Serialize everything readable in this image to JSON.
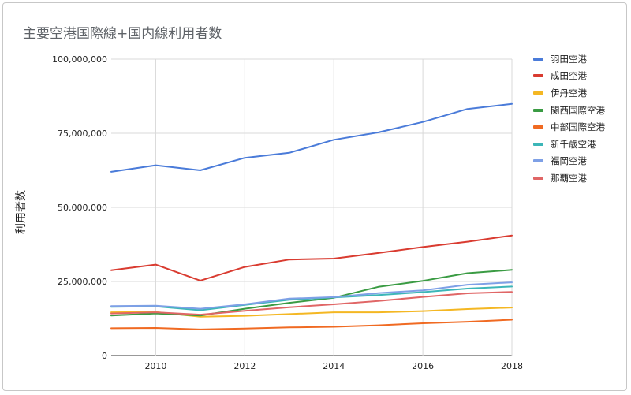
{
  "chart_data": {
    "type": "line",
    "title": "主要空港国際線+国内線利用者数",
    "xlabel": "",
    "ylabel": "利用者数",
    "x": [
      2009,
      2010,
      2011,
      2012,
      2013,
      2014,
      2015,
      2016,
      2017,
      2018
    ],
    "xlim": [
      2009,
      2018
    ],
    "xticks": [
      "2010",
      "2012",
      "2014",
      "2016",
      "2018"
    ],
    "ylim": [
      0,
      100000000
    ],
    "yticks": [
      "0",
      "25,000,000",
      "50,000,000",
      "75,000,000",
      "100,000,000"
    ],
    "grid": true,
    "legend_position": "right",
    "series": [
      {
        "name": "羽田空港",
        "color": "#4a7bd9",
        "values": [
          62000000,
          64200000,
          62500000,
          66700000,
          68400000,
          72800000,
          75300000,
          78800000,
          83200000,
          84900000
        ]
      },
      {
        "name": "成田空港",
        "color": "#d93b30",
        "values": [
          28800000,
          30700000,
          25300000,
          29900000,
          32400000,
          32700000,
          34600000,
          36600000,
          38400000,
          40500000
        ]
      },
      {
        "name": "伊丹空港",
        "color": "#f4b723",
        "values": [
          14600000,
          14700000,
          13100000,
          13400000,
          14000000,
          14600000,
          14600000,
          15000000,
          15700000,
          16200000
        ]
      },
      {
        "name": "関西国際空港",
        "color": "#3a9b43",
        "values": [
          13500000,
          14200000,
          13500000,
          15800000,
          17800000,
          19500000,
          23200000,
          25200000,
          27800000,
          28900000
        ]
      },
      {
        "name": "中部国際空港",
        "color": "#f06a22",
        "values": [
          9200000,
          9300000,
          8800000,
          9100000,
          9500000,
          9700000,
          10200000,
          10900000,
          11400000,
          12100000
        ]
      },
      {
        "name": "新千歳空港",
        "color": "#3cb6b8",
        "values": [
          16400000,
          16600000,
          15300000,
          17100000,
          18800000,
          19600000,
          20400000,
          21400000,
          22600000,
          23300000
        ]
      },
      {
        "name": "福岡空港",
        "color": "#7ea0e6",
        "values": [
          16700000,
          16800000,
          15800000,
          17300000,
          19200000,
          19700000,
          21100000,
          22000000,
          23900000,
          24700000
        ]
      },
      {
        "name": "那覇空港",
        "color": "#e06666",
        "values": [
          14200000,
          14600000,
          13800000,
          15100000,
          16300000,
          17300000,
          18400000,
          19800000,
          21000000,
          21500000
        ]
      }
    ]
  }
}
